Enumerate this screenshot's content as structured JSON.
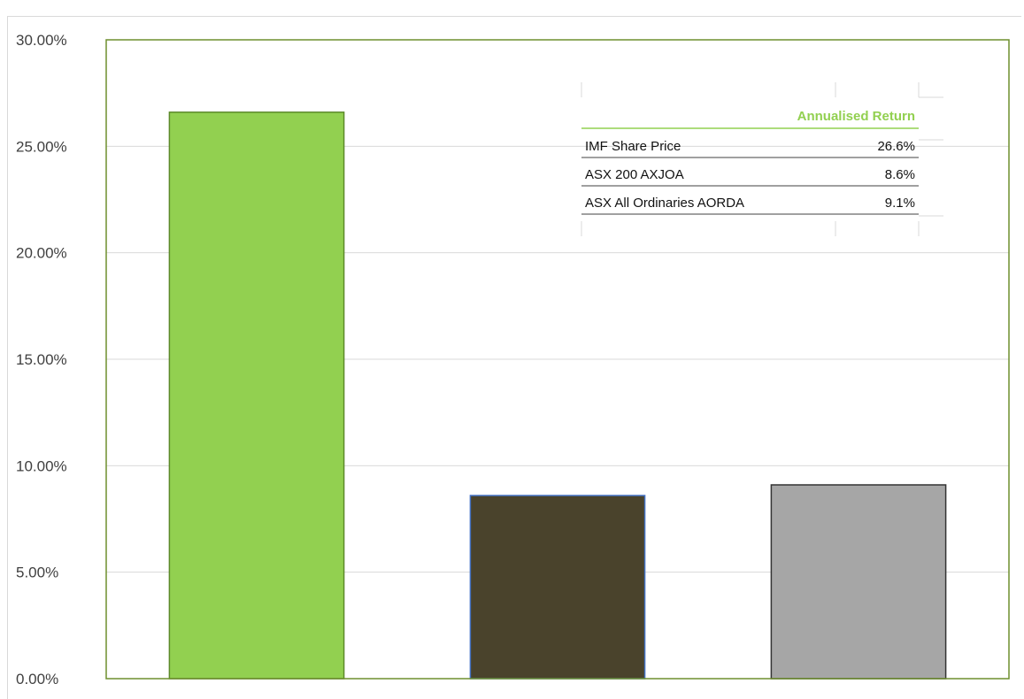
{
  "colors": {
    "plot_border": "#6e8f2e",
    "grid": "#d9d9d9",
    "bar_border": "#5c8a2a",
    "header_text": "#92d050"
  },
  "chart_data": {
    "type": "bar",
    "categories": [
      "IMF Share Price",
      "ASX 200 AXJOA",
      "ASX All Ordinaries AORDA"
    ],
    "values": [
      26.6,
      8.6,
      9.1
    ],
    "bar_colors": [
      "#92d050",
      "#4a432c",
      "#a6a6a6"
    ],
    "bar_outlines": [
      "#5c8a2a",
      "#4472c4",
      "#333333"
    ],
    "ylim": [
      0,
      30
    ],
    "yticks": [
      "0.00%",
      "5.00%",
      "10.00%",
      "15.00%",
      "20.00%",
      "25.00%",
      "30.00%"
    ],
    "ytick_values": [
      0,
      5,
      10,
      15,
      20,
      25,
      30
    ],
    "grid": true,
    "title": "",
    "xlabel": "",
    "ylabel": "",
    "legend_table": {
      "header": "Annualised Return",
      "rows": [
        {
          "label": "IMF Share Price",
          "value": "26.6%"
        },
        {
          "label": "ASX 200 AXJOA",
          "value": "8.6%"
        },
        {
          "label": "ASX All Ordinaries AORDA",
          "value": "9.1%"
        }
      ]
    }
  }
}
